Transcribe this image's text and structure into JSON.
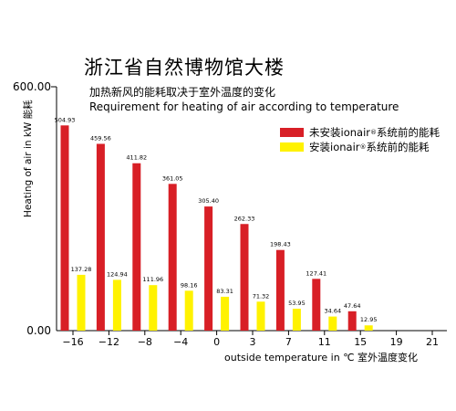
{
  "title": "浙江省自然博物馆大楼",
  "subtitle_cn": "加热新风的能耗取决于室外温度的变化",
  "subtitle_en": "Requirement for heating of air according to temperature",
  "legend": {
    "red_label": "未安装ionair",
    "red_suffix": "系统前的能耗",
    "yellow_label": "安装ionair",
    "yellow_suffix": "系统前的能耗",
    "reg_mark": "®"
  },
  "colors": {
    "red": "#d81f26",
    "yellow": "#fff200",
    "axis": "#000000"
  },
  "chart_data": {
    "type": "bar",
    "categories": [
      "−16",
      "−12",
      "−8",
      "−4",
      "0",
      "3",
      "7",
      "11",
      "15",
      "19",
      "21"
    ],
    "series": [
      {
        "name": "未安装ionair®系统前的能耗",
        "color": "#d81f26",
        "values": [
          504.93,
          459.56,
          411.82,
          361.05,
          305.4,
          262.33,
          198.43,
          127.41,
          47.64,
          null,
          null
        ],
        "labels": [
          "504.93",
          "459.56",
          "411.82",
          "361.05",
          "305.40",
          "262.33",
          "198.43",
          "127.41",
          "47.64",
          "",
          ""
        ]
      },
      {
        "name": "安装ionair®系统前的能耗",
        "color": "#fff200",
        "values": [
          137.28,
          124.94,
          111.96,
          98.16,
          83.31,
          71.32,
          53.95,
          34.64,
          12.95,
          null,
          null
        ],
        "labels": [
          "137.28",
          "124.94",
          "111.96",
          "98.16",
          "83.31",
          "71.32",
          "53.95",
          "34.64",
          "12.95",
          "",
          ""
        ]
      }
    ],
    "ylabel": "Heating of air in kW 能耗",
    "xlabel": "outside temperature in ℃ 室外温度变化",
    "ylim": [
      0,
      600
    ],
    "yticks": [
      "0.00",
      "600.00"
    ],
    "grid": false
  }
}
